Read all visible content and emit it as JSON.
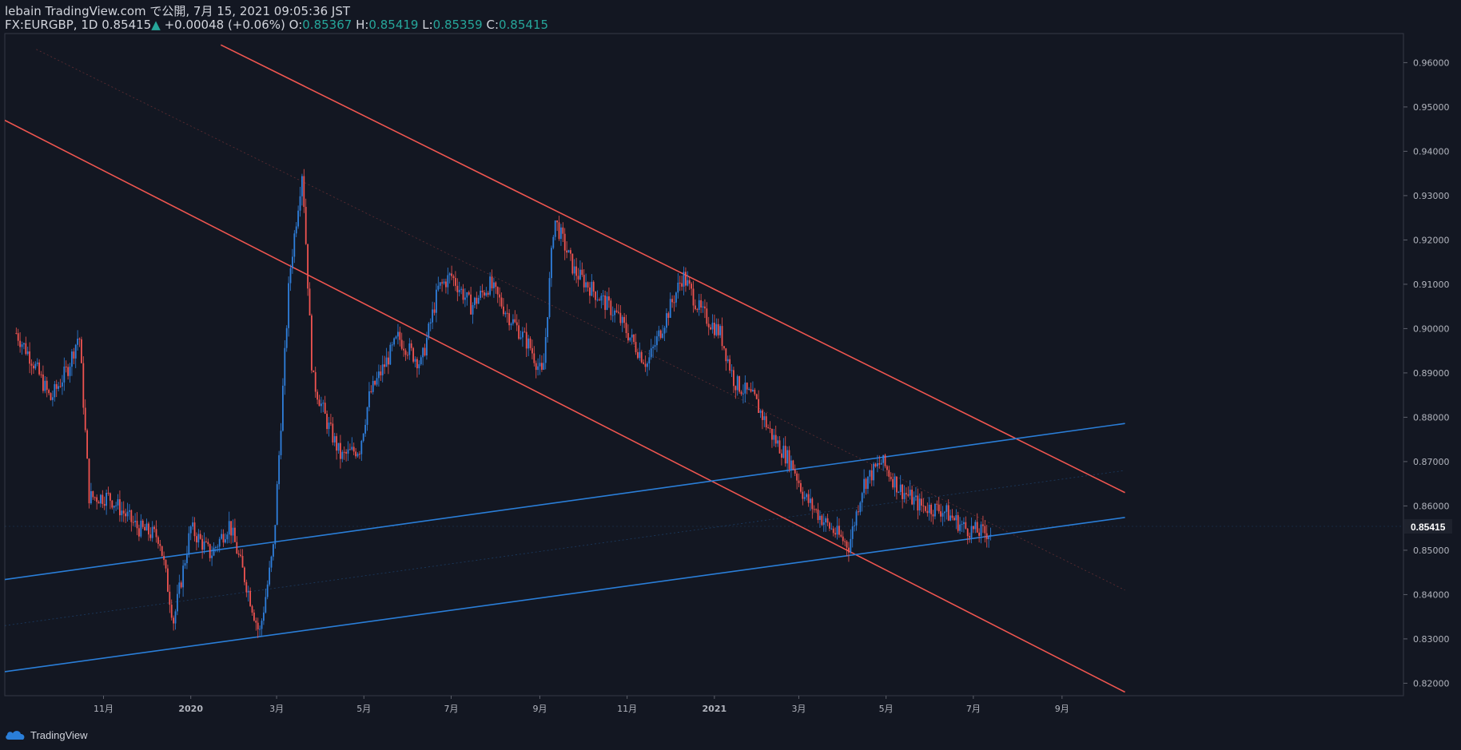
{
  "header": {
    "published": "lebain TradingView.com で公開, 7月 15, 2021 09:05:36 JST",
    "symbol": "FX:EURGBP, 1D",
    "price": "0.85415",
    "change_arrow": "▲",
    "change": "+0.00048 (+0.06%)",
    "o_label": "O:",
    "o_value": "0.85367",
    "h_label": "H:",
    "h_value": "0.85419",
    "l_label": "L:",
    "l_value": "0.85359",
    "c_label": "C:",
    "c_value": "0.85415"
  },
  "footer": {
    "brand": "TradingView"
  },
  "colors": {
    "background": "#131722",
    "up": "#2f7fdc",
    "down": "#ef5350",
    "red_channel": "#f05650",
    "blue_channel": "#2a7ed8",
    "grid_text": "#b2b5be"
  },
  "chart_data": {
    "type": "candlestick",
    "x_ticks": [
      "11月",
      "2020",
      "3月",
      "5月",
      "7月",
      "9月",
      "11月",
      "2021",
      "3月",
      "5月",
      "7月",
      "9月"
    ],
    "y_ticks": [
      "0.82000",
      "0.83000",
      "0.84000",
      "0.85000",
      "0.86000",
      "0.87000",
      "0.88000",
      "0.89000",
      "0.90000",
      "0.91000",
      "0.92000",
      "0.93000",
      "0.94000",
      "0.95000",
      "0.96000"
    ],
    "ylim": [
      0.815,
      0.965
    ],
    "last_price_label": "0.85415",
    "series": [
      {
        "name": "FX:EURGBP, 1D",
        "points": [
          {
            "x": "2019-09-01",
            "y": 0.899
          },
          {
            "x": "2019-09-12",
            "y": 0.893
          },
          {
            "x": "2019-09-25",
            "y": 0.884
          },
          {
            "x": "2019-10-07",
            "y": 0.891
          },
          {
            "x": "2019-10-15",
            "y": 0.899
          },
          {
            "x": "2019-10-22",
            "y": 0.862
          },
          {
            "x": "2019-11-05",
            "y": 0.862
          },
          {
            "x": "2019-11-25",
            "y": 0.855
          },
          {
            "x": "2019-12-10",
            "y": 0.853
          },
          {
            "x": "2019-12-20",
            "y": 0.834
          },
          {
            "x": "2020-01-01",
            "y": 0.855
          },
          {
            "x": "2020-01-15",
            "y": 0.849
          },
          {
            "x": "2020-01-28",
            "y": 0.856
          },
          {
            "x": "2020-02-10",
            "y": 0.841
          },
          {
            "x": "2020-02-18",
            "y": 0.831
          },
          {
            "x": "2020-02-28",
            "y": 0.851
          },
          {
            "x": "2020-03-10",
            "y": 0.912
          },
          {
            "x": "2020-03-19",
            "y": 0.936
          },
          {
            "x": "2020-03-26",
            "y": 0.889
          },
          {
            "x": "2020-04-05",
            "y": 0.879
          },
          {
            "x": "2020-04-15",
            "y": 0.871
          },
          {
            "x": "2020-04-28",
            "y": 0.873
          },
          {
            "x": "2020-05-05",
            "y": 0.885
          },
          {
            "x": "2020-05-25",
            "y": 0.898
          },
          {
            "x": "2020-06-10",
            "y": 0.892
          },
          {
            "x": "2020-06-22",
            "y": 0.909
          },
          {
            "x": "2020-07-01",
            "y": 0.912
          },
          {
            "x": "2020-07-15",
            "y": 0.905
          },
          {
            "x": "2020-07-28",
            "y": 0.91
          },
          {
            "x": "2020-08-10",
            "y": 0.903
          },
          {
            "x": "2020-08-25",
            "y": 0.896
          },
          {
            "x": "2020-09-03",
            "y": 0.889
          },
          {
            "x": "2020-09-11",
            "y": 0.925
          },
          {
            "x": "2020-09-25",
            "y": 0.913
          },
          {
            "x": "2020-10-10",
            "y": 0.908
          },
          {
            "x": "2020-10-25",
            "y": 0.903
          },
          {
            "x": "2020-11-05",
            "y": 0.897
          },
          {
            "x": "2020-11-15",
            "y": 0.892
          },
          {
            "x": "2020-11-30",
            "y": 0.904
          },
          {
            "x": "2020-12-10",
            "y": 0.912
          },
          {
            "x": "2020-12-22",
            "y": 0.904
          },
          {
            "x": "2021-01-05",
            "y": 0.899
          },
          {
            "x": "2021-01-15",
            "y": 0.888
          },
          {
            "x": "2021-01-29",
            "y": 0.884
          },
          {
            "x": "2021-02-10",
            "y": 0.876
          },
          {
            "x": "2021-02-25",
            "y": 0.869
          },
          {
            "x": "2021-03-05",
            "y": 0.862
          },
          {
            "x": "2021-03-20",
            "y": 0.856
          },
          {
            "x": "2021-04-05",
            "y": 0.851
          },
          {
            "x": "2021-04-15",
            "y": 0.865
          },
          {
            "x": "2021-04-28",
            "y": 0.87
          },
          {
            "x": "2021-05-10",
            "y": 0.864
          },
          {
            "x": "2021-05-25",
            "y": 0.86
          },
          {
            "x": "2021-06-10",
            "y": 0.859
          },
          {
            "x": "2021-06-25",
            "y": 0.855
          },
          {
            "x": "2021-07-07",
            "y": 0.854
          },
          {
            "x": "2021-07-14",
            "y": 0.854
          }
        ]
      }
    ],
    "trendlines": [
      {
        "name": "red-channel-top",
        "start": {
          "x": "2020-01-22",
          "y": 0.964
        },
        "end": {
          "x": "2021-10-15",
          "y": 0.863
        }
      },
      {
        "name": "red-channel-bottom",
        "start": {
          "x": "2019-08-24",
          "y": 0.947
        },
        "end": {
          "x": "2021-10-15",
          "y": 0.818
        }
      },
      {
        "name": "red-channel-mid",
        "start": {
          "x": "2019-09-15",
          "y": 0.963
        },
        "end": {
          "x": "2021-10-15",
          "y": 0.841
        }
      },
      {
        "name": "blue-channel-top",
        "start": {
          "x": "2019-08-24",
          "y": 0.8434
        },
        "end": {
          "x": "2021-10-15",
          "y": 0.8786
        }
      },
      {
        "name": "blue-channel-bottom",
        "start": {
          "x": "2019-08-24",
          "y": 0.8226
        },
        "end": {
          "x": "2021-10-15",
          "y": 0.8574
        }
      },
      {
        "name": "blue-channel-mid",
        "start": {
          "x": "2019-08-24",
          "y": 0.833
        },
        "end": {
          "x": "2021-10-15",
          "y": 0.868
        }
      }
    ]
  }
}
